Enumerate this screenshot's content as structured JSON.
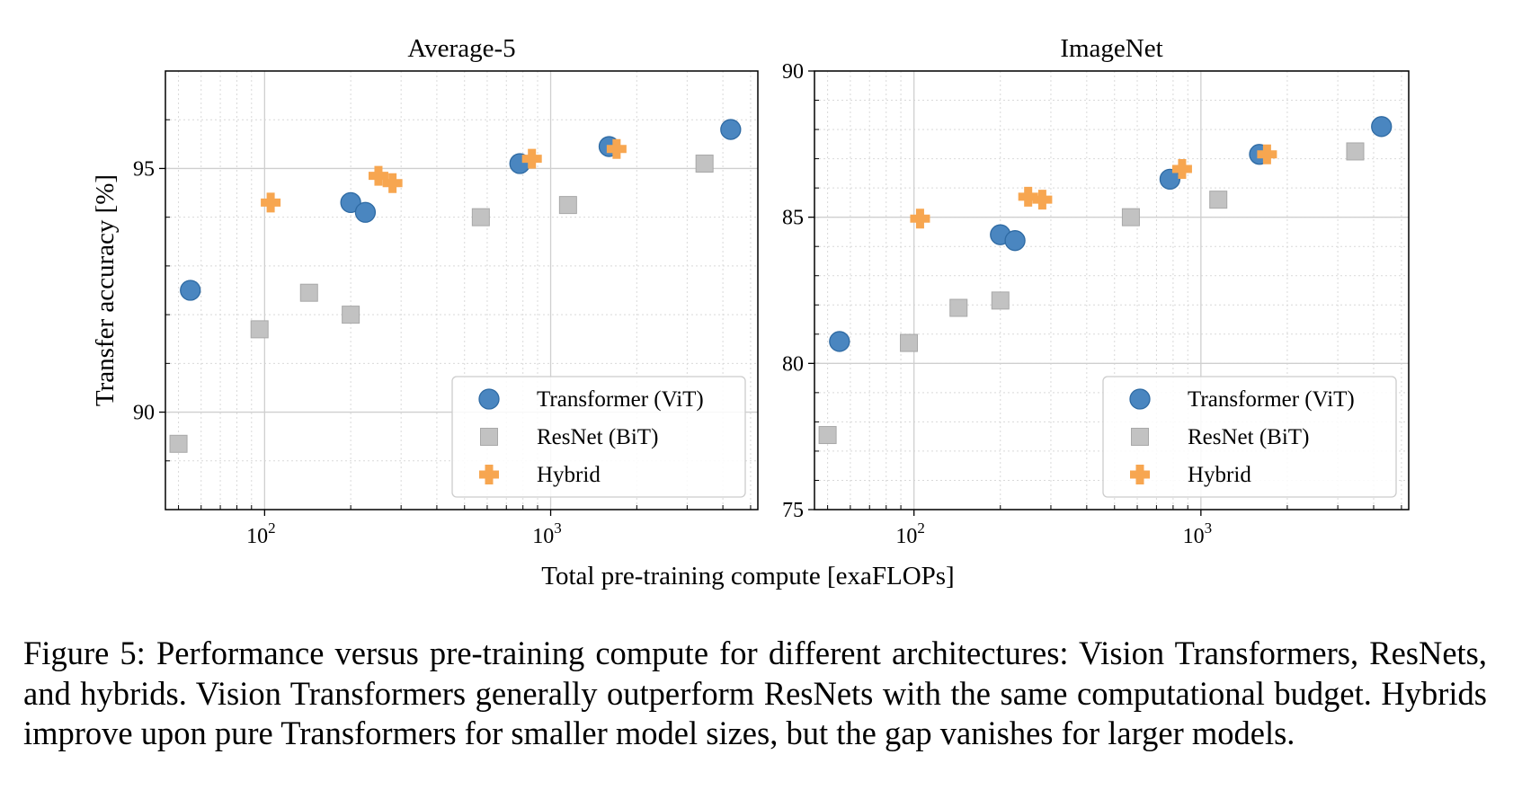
{
  "figure": {
    "shared_xlabel": "Total pre-training compute [exaFLOPs]",
    "caption": "Figure 5: Performance versus pre-training compute for different architectures: Vision Transformers, ResNets, and hybrids. Vision Transformers generally outperform ResNets with the same computational budget. Hybrids improve upon pure Transformers for smaller model sizes, but the gap vanishes for larger models."
  },
  "colors": {
    "vit": "#4a86c0",
    "vit_edge": "#2e6aa3",
    "resnet": "#c2c2c2",
    "resnet_edge": "#a8a8a8",
    "hybrid": "#f7a650",
    "grid": "#d9d9d9"
  },
  "chart_data": [
    {
      "type": "scatter",
      "title": "Average-5",
      "xlabel": "Total pre-training compute [exaFLOPs]",
      "ylabel": "Transfer accuracy [%]",
      "x_scale": "log",
      "xlim": [
        45,
        5300
      ],
      "ylim": [
        88.0,
        97.0
      ],
      "x_ticks": [
        {
          "value": 100,
          "base": "10",
          "exp": "2"
        },
        {
          "value": 1000,
          "base": "10",
          "exp": "3"
        }
      ],
      "y_ticks": [
        {
          "value": 90,
          "label": "90"
        },
        {
          "value": 95,
          "label": "95"
        }
      ],
      "y_minor_step": 1,
      "grid": true,
      "legend_position": "bottom-right",
      "series": [
        {
          "name": "Transformer (ViT)",
          "marker": "circle",
          "x": [
            55,
            200,
            225,
            780,
            1600,
            4260
          ],
          "y": [
            92.5,
            94.3,
            94.1,
            95.1,
            95.45,
            95.8
          ]
        },
        {
          "name": "ResNet (BiT)",
          "marker": "square",
          "x": [
            50,
            96,
            143,
            200,
            570,
            1150,
            3450
          ],
          "y": [
            89.35,
            91.7,
            92.45,
            92.0,
            94.0,
            94.25,
            95.1
          ]
        },
        {
          "name": "Hybrid",
          "marker": "plus",
          "x": [
            105,
            250,
            280,
            860,
            1700
          ],
          "y": [
            94.3,
            94.85,
            94.7,
            95.2,
            95.4
          ]
        }
      ]
    },
    {
      "type": "scatter",
      "title": "ImageNet",
      "xlabel": "Total pre-training compute [exaFLOPs]",
      "ylabel": "",
      "x_scale": "log",
      "xlim": [
        45,
        5300
      ],
      "ylim": [
        75,
        90
      ],
      "x_ticks": [
        {
          "value": 100,
          "base": "10",
          "exp": "2"
        },
        {
          "value": 1000,
          "base": "10",
          "exp": "3"
        }
      ],
      "y_ticks": [
        {
          "value": 75,
          "label": "75"
        },
        {
          "value": 80,
          "label": "80"
        },
        {
          "value": 85,
          "label": "85"
        },
        {
          "value": 90,
          "label": "90"
        }
      ],
      "y_minor_step": 1,
      "grid": true,
      "legend_position": "bottom-right",
      "series": [
        {
          "name": "Transformer (ViT)",
          "marker": "circle",
          "x": [
            55,
            200,
            225,
            780,
            1600,
            4260
          ],
          "y": [
            80.75,
            84.4,
            84.2,
            86.3,
            87.15,
            88.1
          ]
        },
        {
          "name": "ResNet (BiT)",
          "marker": "square",
          "x": [
            50,
            96,
            143,
            200,
            570,
            1150,
            3450
          ],
          "y": [
            77.55,
            80.7,
            81.9,
            82.15,
            85.0,
            85.6,
            87.25
          ]
        },
        {
          "name": "Hybrid",
          "marker": "plus",
          "x": [
            105,
            250,
            280,
            860,
            1700
          ],
          "y": [
            84.95,
            85.7,
            85.6,
            86.65,
            87.15
          ]
        }
      ]
    }
  ]
}
